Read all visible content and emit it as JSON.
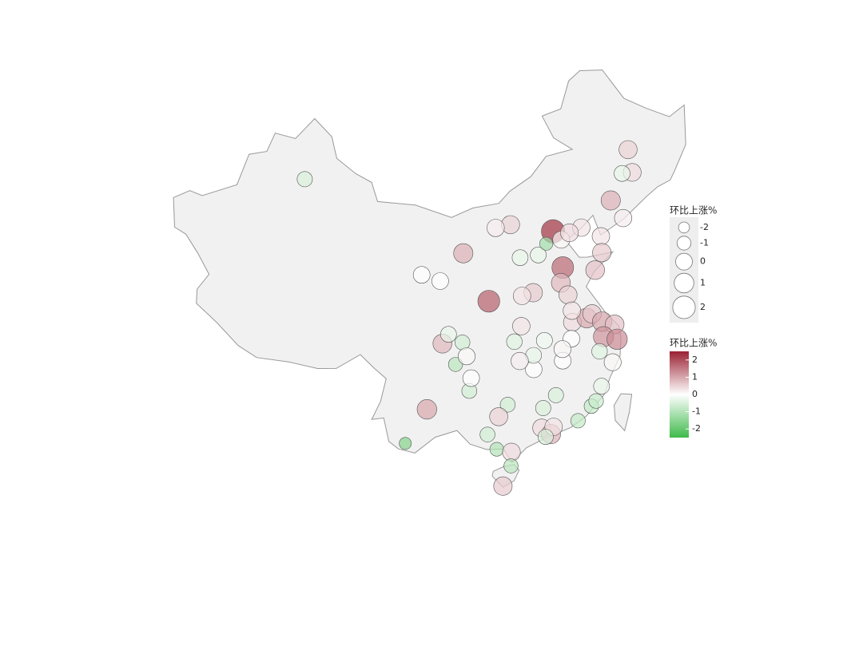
{
  "chart_data": {
    "type": "bubble-map",
    "size_legend": {
      "title": "环比上涨%",
      "ticks": [
        -2,
        -1,
        0,
        1,
        2
      ]
    },
    "color_legend": {
      "title": "环比上涨%",
      "ticks": [
        2,
        1,
        0,
        -1,
        -2
      ]
    },
    "clim": [
      -2.5,
      2.5
    ],
    "colors": {
      "low": "#3fba4b",
      "mid": "#ffffff",
      "high": "#9a2132"
    },
    "lon": [
      87.6,
      126.6,
      126.5,
      125.3,
      123.4,
      121.6,
      124.4,
      116.4,
      117.2,
      114.5,
      119.6,
      118.2,
      115.5,
      111.7,
      110.0,
      112.5,
      106.3,
      103.8,
      101.8,
      108.9,
      113.6,
      112.4,
      117.0,
      120.4,
      121.4,
      116.6,
      117.2,
      117.3,
      118.8,
      119.4,
      120.3,
      121.5,
      120.2,
      121.5,
      120.7,
      119.6,
      117.4,
      117.0,
      114.3,
      111.3,
      112.1,
      113.0,
      113.1,
      111.7,
      115.9,
      116.0,
      114.9,
      119.3,
      118.1,
      118.6,
      104.1,
      104.7,
      106.1,
      105.4,
      106.5,
      106.7,
      106.9,
      102.7,
      100.8,
      108.3,
      110.3,
      109.4,
      109.1,
      113.3,
      114.1,
      114.4,
      116.7,
      110.4,
      113.6,
      110.3,
      109.5,
      113.6
    ],
    "lat": [
      43.8,
      45.8,
      43.8,
      43.9,
      41.8,
      38.9,
      40.1,
      39.9,
      39.1,
      38.0,
      39.9,
      39.6,
      38.9,
      40.8,
      40.6,
      37.9,
      38.5,
      36.1,
      36.6,
      34.3,
      34.8,
      34.6,
      36.7,
      36.1,
      37.5,
      35.4,
      34.3,
      31.9,
      32.1,
      32.4,
      31.6,
      31.2,
      30.3,
      29.9,
      28.0,
      29.1,
      32.9,
      30.5,
      30.6,
      30.7,
      32.0,
      28.2,
      29.4,
      29.0,
      28.7,
      29.7,
      25.8,
      26.1,
      24.5,
      24.9,
      30.7,
      31.5,
      30.8,
      28.9,
      29.6,
      26.6,
      27.7,
      25.0,
      22.0,
      22.8,
      25.3,
      24.3,
      21.5,
      23.1,
      22.5,
      23.1,
      23.4,
      21.2,
      24.8,
      20.0,
      18.3,
      22.3
    ],
    "values": [
      -0.5,
      0.5,
      0.4,
      -0.3,
      0.9,
      0.3,
      0.2,
      2.3,
      0.1,
      -0.3,
      0.3,
      0.4,
      -1.2,
      0.5,
      0.2,
      -0.3,
      0.9,
      0,
      0,
      1.8,
      0.6,
      0.3,
      1.7,
      0.7,
      0.6,
      0.8,
      0.5,
      0.4,
      1.0,
      0.6,
      1.0,
      0.7,
      1.2,
      1.3,
      0.1,
      -0.4,
      0.3,
      0,
      -0.2,
      -0.4,
      0.3,
      0,
      -0.3,
      0.2,
      0,
      0.1,
      -0.5,
      -0.3,
      -0.8,
      -0.7,
      0.8,
      -0.3,
      -0.6,
      -0.9,
      0.1,
      -0.6,
      0,
      1.0,
      -1.6,
      -0.6,
      -0.6,
      0.5,
      -1.0,
      0.4,
      0.9,
      0.3,
      -0.8,
      0.4,
      -0.5,
      -0.9,
      0.6,
      -0.5
    ]
  }
}
